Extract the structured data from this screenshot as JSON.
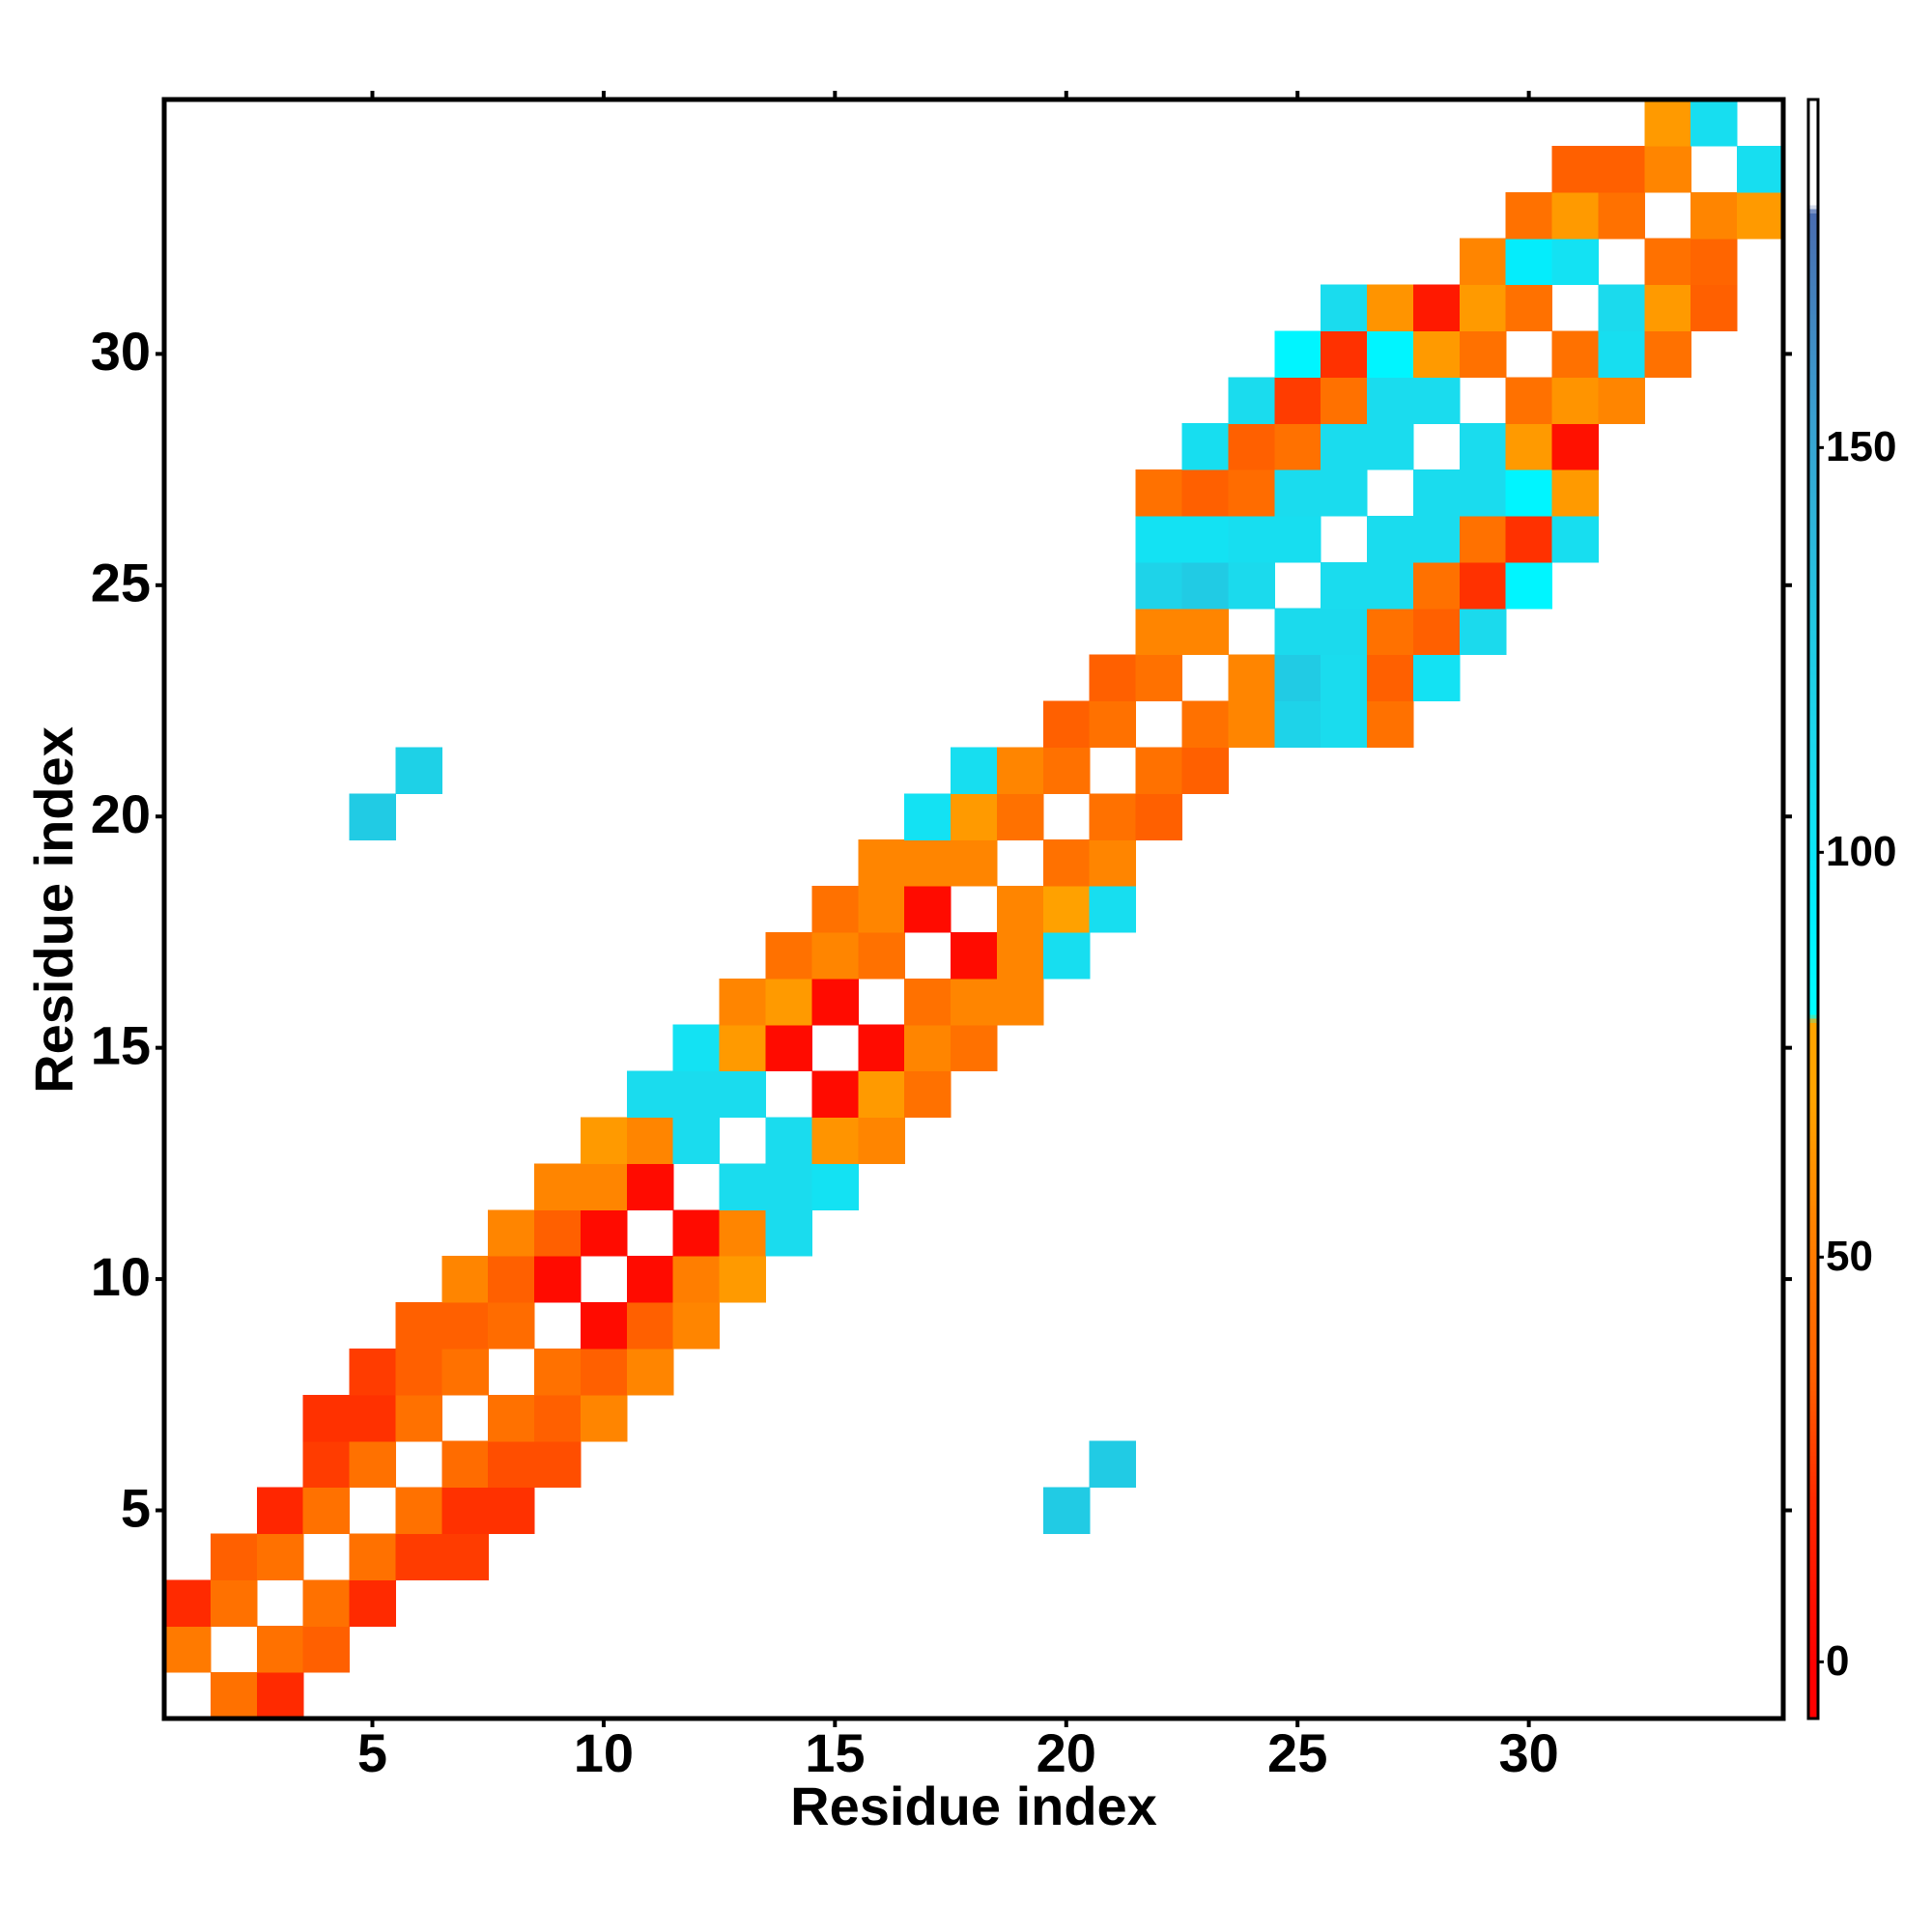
{
  "chart_data": {
    "type": "heatmap",
    "xlabel": "Residue index",
    "ylabel": "Residue index",
    "x": [
      1,
      2,
      3,
      4,
      5,
      6,
      7,
      8,
      9,
      10,
      11,
      12,
      13,
      14,
      15,
      16,
      17,
      18,
      19,
      20,
      21,
      22,
      23,
      24,
      25,
      26,
      27,
      28,
      29,
      30,
      31,
      32,
      33,
      34,
      35
    ],
    "y": [
      1,
      2,
      3,
      4,
      5,
      6,
      7,
      8,
      9,
      10,
      11,
      12,
      13,
      14,
      15,
      16,
      17,
      18,
      19,
      20,
      21,
      22,
      23,
      24,
      25,
      26,
      27,
      28,
      29,
      30,
      31,
      32,
      33,
      34,
      35
    ],
    "xlim": [
      0.5,
      35.5
    ],
    "ylim": [
      0.5,
      35.5
    ],
    "xticks": [
      5,
      10,
      15,
      20,
      25,
      30
    ],
    "yticks": [
      5,
      10,
      15,
      20,
      25,
      30
    ],
    "clim": [
      -7,
      193
    ],
    "cticks": [
      0,
      50,
      100,
      150
    ],
    "colorscale": [
      [
        0,
        "#ff0000"
      ],
      [
        20,
        "#ff2a00"
      ],
      [
        35,
        "#ff6000"
      ],
      [
        50,
        "#ff7a00"
      ],
      [
        70,
        "#ffa500"
      ],
      [
        79,
        "#ffa500"
      ],
      [
        80,
        "#00ffff"
      ],
      [
        92,
        "#00f0ff"
      ],
      [
        110,
        "#1adcee"
      ],
      [
        128,
        "#22c8e2"
      ],
      [
        154,
        "#3aa0d0"
      ],
      [
        179,
        "#4a6cb0"
      ],
      [
        180,
        "#ffffff"
      ],
      [
        193,
        "#ffffff"
      ]
    ],
    "z": [
      [
        null,
        45,
        20,
        null,
        null,
        null,
        null,
        null,
        null,
        null,
        null,
        null,
        null,
        null,
        null,
        null,
        null,
        null,
        null,
        null,
        null,
        null,
        null,
        null,
        null,
        null,
        null,
        null,
        null,
        null,
        null,
        null,
        null,
        null,
        null
      ],
      [
        50,
        null,
        45,
        35,
        null,
        null,
        null,
        null,
        null,
        null,
        null,
        null,
        null,
        null,
        null,
        null,
        null,
        null,
        null,
        null,
        null,
        null,
        null,
        null,
        null,
        null,
        null,
        null,
        null,
        null,
        null,
        null,
        null,
        null,
        null
      ],
      [
        20,
        45,
        null,
        45,
        20,
        null,
        null,
        null,
        null,
        null,
        null,
        null,
        null,
        null,
        null,
        null,
        null,
        null,
        null,
        null,
        null,
        null,
        null,
        null,
        null,
        null,
        null,
        null,
        null,
        null,
        null,
        null,
        null,
        null,
        null
      ],
      [
        null,
        35,
        45,
        null,
        45,
        25,
        25,
        null,
        null,
        null,
        null,
        null,
        null,
        null,
        null,
        null,
        null,
        null,
        null,
        null,
        null,
        null,
        null,
        null,
        null,
        null,
        null,
        null,
        null,
        null,
        null,
        null,
        null,
        null,
        null
      ],
      [
        null,
        null,
        18,
        45,
        null,
        45,
        22,
        22,
        null,
        null,
        null,
        null,
        null,
        null,
        null,
        null,
        null,
        null,
        null,
        125,
        null,
        null,
        null,
        null,
        null,
        null,
        null,
        null,
        null,
        null,
        null,
        null,
        null,
        null,
        null
      ],
      [
        null,
        null,
        null,
        25,
        45,
        null,
        42,
        30,
        30,
        null,
        null,
        null,
        null,
        null,
        null,
        null,
        null,
        null,
        null,
        null,
        125,
        null,
        null,
        null,
        null,
        null,
        null,
        null,
        null,
        null,
        null,
        null,
        null,
        null,
        null
      ],
      [
        null,
        null,
        null,
        22,
        22,
        45,
        null,
        45,
        35,
        55,
        null,
        null,
        null,
        null,
        null,
        null,
        null,
        null,
        null,
        null,
        null,
        null,
        null,
        null,
        null,
        null,
        null,
        null,
        null,
        null,
        null,
        null,
        null,
        null,
        null
      ],
      [
        null,
        null,
        null,
        null,
        25,
        35,
        45,
        null,
        45,
        35,
        55,
        null,
        null,
        null,
        null,
        null,
        null,
        null,
        null,
        null,
        null,
        null,
        null,
        null,
        null,
        null,
        null,
        null,
        null,
        null,
        null,
        null,
        null,
        null,
        null
      ],
      [
        null,
        null,
        null,
        null,
        null,
        35,
        35,
        42,
        null,
        5,
        35,
        55,
        null,
        null,
        null,
        null,
        null,
        null,
        null,
        null,
        null,
        null,
        null,
        null,
        null,
        null,
        null,
        null,
        null,
        null,
        null,
        null,
        null,
        null,
        null
      ],
      [
        null,
        null,
        null,
        null,
        null,
        null,
        55,
        35,
        5,
        null,
        5,
        52,
        65,
        null,
        null,
        null,
        null,
        null,
        null,
        null,
        null,
        null,
        null,
        null,
        null,
        null,
        null,
        null,
        null,
        null,
        null,
        null,
        null,
        null,
        null
      ],
      [
        null,
        null,
        null,
        null,
        null,
        null,
        null,
        55,
        35,
        5,
        null,
        5,
        55,
        110,
        null,
        null,
        null,
        null,
        null,
        null,
        null,
        null,
        null,
        null,
        null,
        null,
        null,
        null,
        null,
        null,
        null,
        null,
        null,
        null,
        null
      ],
      [
        null,
        null,
        null,
        null,
        null,
        null,
        null,
        null,
        55,
        55,
        5,
        null,
        110,
        110,
        105,
        null,
        null,
        null,
        null,
        null,
        null,
        null,
        null,
        null,
        null,
        null,
        null,
        null,
        null,
        null,
        null,
        null,
        null,
        null,
        null
      ],
      [
        null,
        null,
        null,
        null,
        null,
        null,
        null,
        null,
        null,
        65,
        55,
        110,
        null,
        110,
        62,
        55,
        null,
        null,
        null,
        null,
        null,
        null,
        null,
        null,
        null,
        null,
        null,
        null,
        null,
        null,
        null,
        null,
        null,
        null,
        null
      ],
      [
        null,
        null,
        null,
        null,
        null,
        null,
        null,
        null,
        null,
        null,
        110,
        110,
        110,
        null,
        5,
        65,
        45,
        null,
        null,
        null,
        null,
        null,
        null,
        null,
        null,
        null,
        null,
        null,
        null,
        null,
        null,
        null,
        null,
        null,
        null
      ],
      [
        null,
        null,
        null,
        null,
        null,
        null,
        null,
        null,
        null,
        null,
        null,
        105,
        65,
        5,
        null,
        5,
        55,
        45,
        null,
        null,
        null,
        null,
        null,
        null,
        null,
        null,
        null,
        null,
        null,
        null,
        null,
        null,
        null,
        null,
        null
      ],
      [
        null,
        null,
        null,
        null,
        null,
        null,
        null,
        null,
        null,
        null,
        null,
        null,
        55,
        65,
        5,
        null,
        45,
        55,
        55,
        null,
        null,
        null,
        null,
        null,
        null,
        null,
        null,
        null,
        null,
        null,
        null,
        null,
        null,
        null,
        null
      ],
      [
        null,
        null,
        null,
        null,
        null,
        null,
        null,
        null,
        null,
        null,
        null,
        null,
        null,
        45,
        55,
        45,
        null,
        5,
        55,
        108,
        null,
        null,
        null,
        null,
        null,
        null,
        null,
        null,
        null,
        null,
        null,
        null,
        null,
        null,
        null
      ],
      [
        null,
        null,
        null,
        null,
        null,
        null,
        null,
        null,
        null,
        null,
        null,
        null,
        null,
        null,
        45,
        55,
        5,
        null,
        55,
        68,
        108,
        null,
        null,
        null,
        null,
        null,
        null,
        null,
        null,
        null,
        null,
        null,
        null,
        null,
        null
      ],
      [
        null,
        null,
        null,
        null,
        null,
        null,
        null,
        null,
        null,
        null,
        null,
        null,
        null,
        null,
        null,
        55,
        55,
        55,
        null,
        45,
        55,
        null,
        null,
        null,
        null,
        null,
        null,
        null,
        null,
        null,
        null,
        null,
        null,
        null,
        null
      ],
      [
        null,
        null,
        null,
        null,
        125,
        null,
        null,
        null,
        null,
        null,
        null,
        null,
        null,
        null,
        null,
        null,
        105,
        65,
        45,
        null,
        45,
        35,
        null,
        null,
        null,
        null,
        null,
        null,
        null,
        null,
        null,
        null,
        null,
        null,
        null
      ],
      [
        null,
        null,
        null,
        null,
        null,
        120,
        null,
        null,
        null,
        null,
        null,
        null,
        null,
        null,
        null,
        null,
        null,
        108,
        55,
        45,
        null,
        45,
        35,
        null,
        null,
        null,
        null,
        null,
        null,
        null,
        null,
        null,
        null,
        null,
        null
      ],
      [
        null,
        null,
        null,
        null,
        null,
        null,
        null,
        null,
        null,
        null,
        null,
        null,
        null,
        null,
        null,
        null,
        null,
        null,
        null,
        35,
        45,
        null,
        45,
        55,
        118,
        110,
        45,
        null,
        null,
        null,
        null,
        null,
        null,
        null,
        null
      ],
      [
        null,
        null,
        null,
        null,
        null,
        null,
        null,
        null,
        null,
        null,
        null,
        null,
        null,
        null,
        null,
        null,
        null,
        null,
        null,
        null,
        35,
        45,
        null,
        55,
        125,
        110,
        35,
        105,
        null,
        null,
        null,
        null,
        null,
        null,
        null
      ],
      [
        null,
        null,
        null,
        null,
        null,
        null,
        null,
        null,
        null,
        null,
        null,
        null,
        null,
        null,
        null,
        null,
        null,
        null,
        null,
        null,
        null,
        55,
        55,
        null,
        112,
        112,
        45,
        35,
        112,
        null,
        null,
        null,
        null,
        null,
        null
      ],
      [
        null,
        null,
        null,
        null,
        null,
        null,
        null,
        null,
        null,
        null,
        null,
        null,
        null,
        null,
        null,
        null,
        null,
        null,
        null,
        null,
        null,
        118,
        125,
        112,
        null,
        110,
        110,
        45,
        22,
        88,
        null,
        null,
        null,
        null,
        null
      ],
      [
        null,
        null,
        null,
        null,
        null,
        null,
        null,
        null,
        null,
        null,
        null,
        null,
        null,
        null,
        null,
        null,
        null,
        null,
        null,
        null,
        null,
        105,
        105,
        108,
        108,
        null,
        110,
        110,
        45,
        22,
        108,
        null,
        null,
        null,
        null
      ],
      [
        null,
        null,
        null,
        null,
        null,
        null,
        null,
        null,
        null,
        null,
        null,
        null,
        null,
        null,
        null,
        null,
        null,
        null,
        null,
        null,
        null,
        45,
        35,
        42,
        110,
        110,
        null,
        110,
        110,
        88,
        65,
        null,
        null,
        null,
        null
      ],
      [
        null,
        null,
        null,
        null,
        null,
        null,
        null,
        null,
        null,
        null,
        null,
        null,
        null,
        null,
        null,
        null,
        null,
        null,
        null,
        null,
        null,
        null,
        108,
        35,
        45,
        110,
        110,
        null,
        110,
        65,
        8,
        null,
        null,
        null,
        null
      ],
      [
        null,
        null,
        null,
        null,
        null,
        null,
        null,
        null,
        null,
        null,
        null,
        null,
        null,
        null,
        null,
        null,
        null,
        null,
        null,
        null,
        null,
        null,
        null,
        110,
        25,
        45,
        110,
        110,
        null,
        45,
        62,
        55,
        null,
        null,
        null
      ],
      [
        null,
        null,
        null,
        null,
        null,
        null,
        null,
        null,
        null,
        null,
        null,
        null,
        null,
        null,
        null,
        null,
        null,
        null,
        null,
        null,
        null,
        null,
        null,
        null,
        88,
        22,
        88,
        65,
        45,
        null,
        45,
        108,
        45,
        null,
        null
      ],
      [
        null,
        null,
        null,
        null,
        null,
        null,
        null,
        null,
        null,
        null,
        null,
        null,
        null,
        null,
        null,
        null,
        null,
        null,
        null,
        null,
        null,
        null,
        null,
        null,
        null,
        110,
        62,
        12,
        65,
        45,
        null,
        112,
        65,
        35,
        null
      ],
      [
        null,
        null,
        null,
        null,
        null,
        null,
        null,
        null,
        null,
        null,
        null,
        null,
        null,
        null,
        null,
        null,
        null,
        null,
        null,
        null,
        null,
        null,
        null,
        null,
        null,
        null,
        null,
        null,
        55,
        95,
        105,
        null,
        45,
        38,
        null
      ],
      [
        null,
        null,
        null,
        null,
        null,
        null,
        null,
        null,
        null,
        null,
        null,
        null,
        null,
        null,
        null,
        null,
        null,
        null,
        null,
        null,
        null,
        null,
        null,
        null,
        null,
        null,
        null,
        null,
        null,
        45,
        65,
        45,
        null,
        55,
        65
      ],
      [
        null,
        null,
        null,
        null,
        null,
        null,
        null,
        null,
        null,
        null,
        null,
        null,
        null,
        null,
        null,
        null,
        null,
        null,
        null,
        null,
        null,
        null,
        null,
        null,
        null,
        null,
        null,
        null,
        null,
        null,
        35,
        35,
        55,
        null,
        108
      ],
      [
        null,
        null,
        null,
        null,
        null,
        null,
        null,
        null,
        null,
        null,
        null,
        null,
        null,
        null,
        null,
        null,
        null,
        null,
        null,
        null,
        null,
        null,
        null,
        null,
        null,
        null,
        null,
        null,
        null,
        null,
        null,
        null,
        65,
        108,
        null
      ]
    ]
  }
}
